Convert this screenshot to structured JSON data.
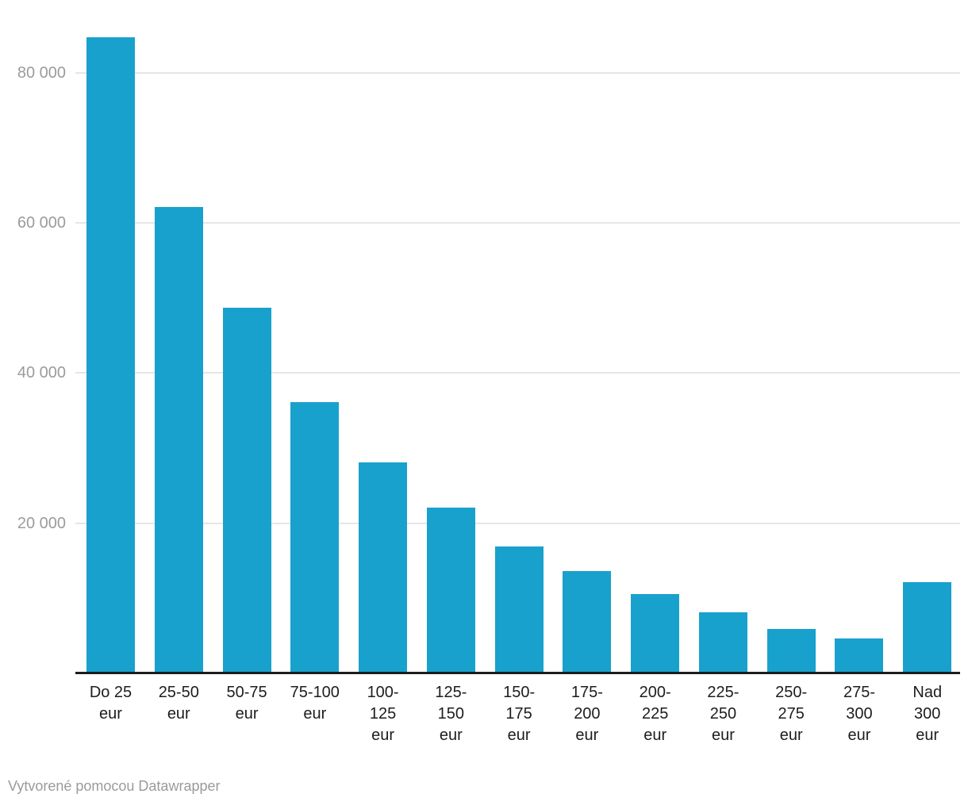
{
  "chart_data": {
    "type": "bar",
    "title": "",
    "categories": [
      "Do 25 eur",
      "25-50 eur",
      "50-75 eur",
      "75-100 eur",
      "100-125 eur",
      "125-150 eur",
      "150-175 eur",
      "175-200 eur",
      "200-225 eur",
      "225-250 eur",
      "250-275 eur",
      "275-300 eur",
      "Nad 300 eur"
    ],
    "label_lines": [
      [
        "Do 25",
        "eur"
      ],
      [
        "25-50",
        "eur"
      ],
      [
        "50-75",
        "eur"
      ],
      [
        "75-100",
        "eur"
      ],
      [
        "100-",
        "125",
        "eur"
      ],
      [
        "125-",
        "150",
        "eur"
      ],
      [
        "150-",
        "175",
        "eur"
      ],
      [
        "175-",
        "200",
        "eur"
      ],
      [
        "200-",
        "225",
        "eur"
      ],
      [
        "225-",
        "250",
        "eur"
      ],
      [
        "250-",
        "275",
        "eur"
      ],
      [
        "275-",
        "300",
        "eur"
      ],
      [
        "Nad",
        "300",
        "eur"
      ]
    ],
    "values": [
      84600,
      62000,
      48600,
      36000,
      28000,
      22000,
      16800,
      13500,
      10500,
      8000,
      5800,
      4500,
      12000
    ],
    "xlabel": "",
    "ylabel": "",
    "ylim": [
      0,
      90000
    ],
    "y_ticks": [
      {
        "value": 20000,
        "label": "20 000"
      },
      {
        "value": 40000,
        "label": "40 000"
      },
      {
        "value": 60000,
        "label": "60 000"
      },
      {
        "value": 80000,
        "label": "80 000"
      }
    ],
    "grid": "horizontal",
    "legend": "none",
    "colors": {
      "bar": "#18a1cd",
      "gridline": "#e6e6e6",
      "axis_line": "#1d1d1d",
      "y_tick_label": "#9b9b9b",
      "x_tick_label": "#1d1d1d"
    }
  },
  "footer": {
    "attribution": "Vytvorené pomocou Datawrapper"
  }
}
